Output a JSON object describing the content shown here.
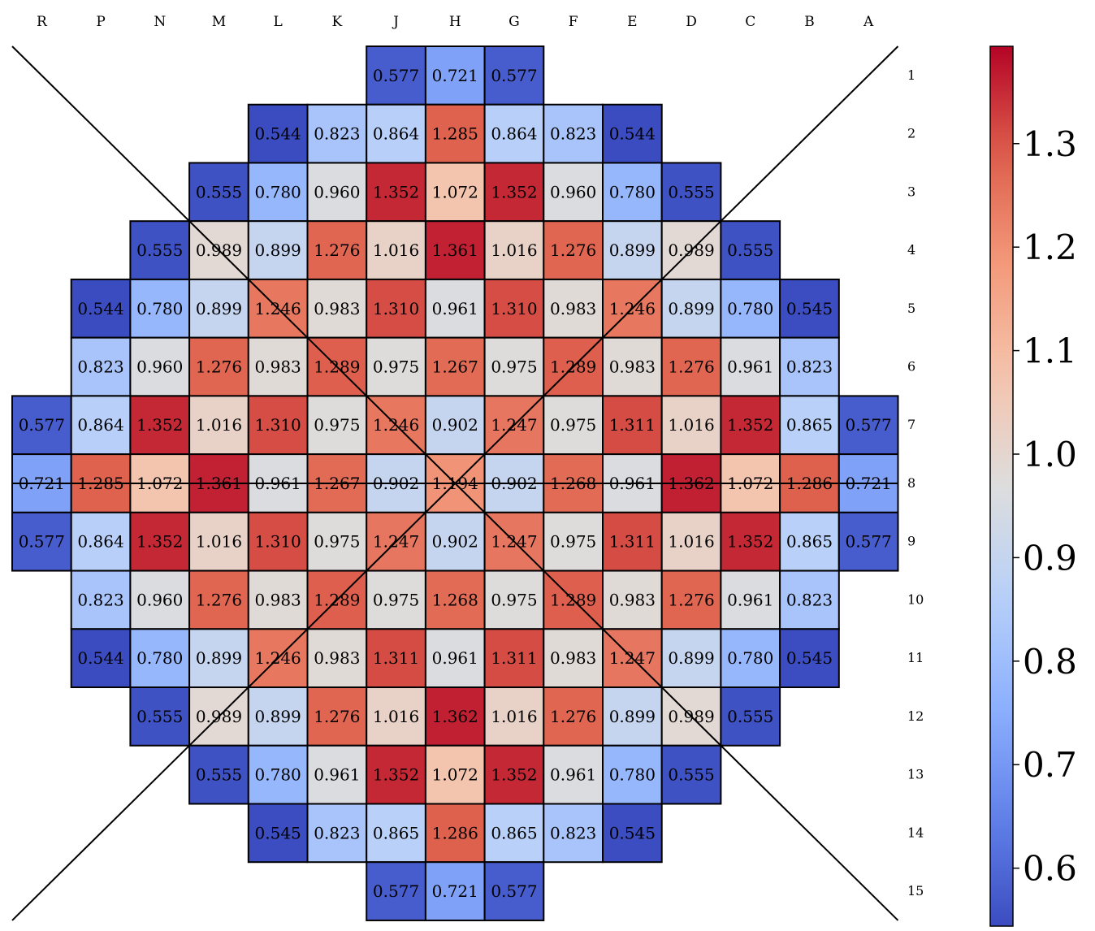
{
  "chart_data": {
    "type": "heatmap",
    "title": "",
    "colormap": "coolwarm",
    "columns": [
      "R",
      "P",
      "N",
      "M",
      "L",
      "K",
      "J",
      "H",
      "G",
      "F",
      "E",
      "D",
      "C",
      "B",
      "A"
    ],
    "rows": [
      "1",
      "2",
      "3",
      "4",
      "5",
      "6",
      "7",
      "8",
      "9",
      "10",
      "11",
      "12",
      "13",
      "14",
      "15"
    ],
    "values": [
      [
        null,
        null,
        null,
        null,
        null,
        null,
        0.577,
        0.721,
        0.577,
        null,
        null,
        null,
        null,
        null,
        null
      ],
      [
        null,
        null,
        null,
        null,
        0.544,
        0.823,
        0.864,
        1.285,
        0.864,
        0.823,
        0.544,
        null,
        null,
        null,
        null
      ],
      [
        null,
        null,
        null,
        0.555,
        0.78,
        0.96,
        1.352,
        1.072,
        1.352,
        0.96,
        0.78,
        0.555,
        null,
        null,
        null
      ],
      [
        null,
        null,
        0.555,
        0.989,
        0.899,
        1.276,
        1.016,
        1.361,
        1.016,
        1.276,
        0.899,
        0.989,
        0.555,
        null,
        null
      ],
      [
        null,
        0.544,
        0.78,
        0.899,
        1.246,
        0.983,
        1.31,
        0.961,
        1.31,
        0.983,
        1.246,
        0.899,
        0.78,
        0.545,
        null
      ],
      [
        null,
        0.823,
        0.96,
        1.276,
        0.983,
        1.289,
        0.975,
        1.267,
        0.975,
        1.289,
        0.983,
        1.276,
        0.961,
        0.823,
        null
      ],
      [
        0.577,
        0.864,
        1.352,
        1.016,
        1.31,
        0.975,
        1.246,
        0.902,
        1.247,
        0.975,
        1.311,
        1.016,
        1.352,
        0.865,
        0.577
      ],
      [
        0.721,
        1.285,
        1.072,
        1.361,
        0.961,
        1.267,
        0.902,
        1.194,
        0.902,
        1.268,
        0.961,
        1.362,
        1.072,
        1.286,
        0.721
      ],
      [
        0.577,
        0.864,
        1.352,
        1.016,
        1.31,
        0.975,
        1.247,
        0.902,
        1.247,
        0.975,
        1.311,
        1.016,
        1.352,
        0.865,
        0.577
      ],
      [
        null,
        0.823,
        0.96,
        1.276,
        0.983,
        1.289,
        0.975,
        1.268,
        0.975,
        1.289,
        0.983,
        1.276,
        0.961,
        0.823,
        null
      ],
      [
        null,
        0.544,
        0.78,
        0.899,
        1.246,
        0.983,
        1.311,
        0.961,
        1.311,
        0.983,
        1.247,
        0.899,
        0.78,
        0.545,
        null
      ],
      [
        null,
        null,
        0.555,
        0.989,
        0.899,
        1.276,
        1.016,
        1.362,
        1.016,
        1.276,
        0.899,
        0.989,
        0.555,
        null,
        null
      ],
      [
        null,
        null,
        null,
        0.555,
        0.78,
        0.961,
        1.352,
        1.072,
        1.352,
        0.961,
        0.78,
        0.555,
        null,
        null,
        null
      ],
      [
        null,
        null,
        null,
        null,
        0.545,
        0.823,
        0.865,
        1.286,
        0.865,
        0.823,
        0.545,
        null,
        null,
        null,
        null
      ],
      [
        null,
        null,
        null,
        null,
        null,
        null,
        0.577,
        0.721,
        0.577,
        null,
        null,
        null,
        null,
        null,
        null
      ]
    ],
    "value_format": 3,
    "colorbar": {
      "range": [
        0.544,
        1.394
      ],
      "ticks": [
        0.6,
        0.7,
        0.8,
        0.9,
        1.0,
        1.1,
        1.2,
        1.3
      ],
      "tick_labels": [
        "0.6",
        "0.7",
        "0.8",
        "0.9",
        "1.0",
        "1.1",
        "1.2",
        "1.3"
      ]
    },
    "diagonal_lines": true,
    "horizontal_center_line": true
  }
}
